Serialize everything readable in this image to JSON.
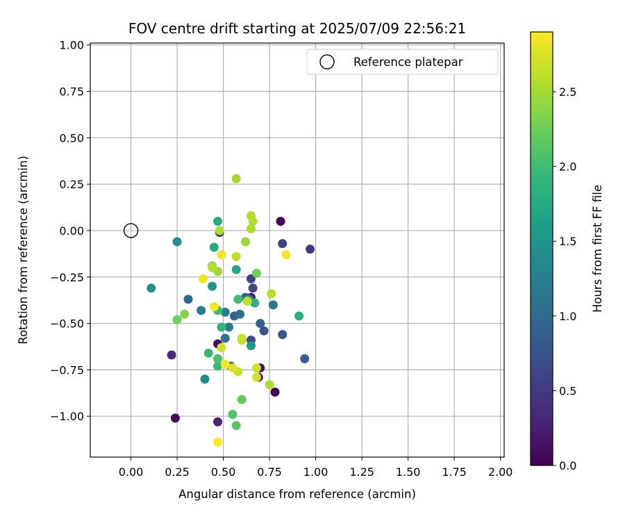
{
  "chart_data": {
    "type": "scatter",
    "title": "FOV centre drift starting at 2025/07/09 22:56:21",
    "xlabel": "Angular distance from reference (arcmin)",
    "ylabel": "Rotation from reference (arcmin)",
    "xlim": [
      -0.22,
      2.02
    ],
    "ylim": [
      -1.22,
      1.01
    ],
    "xticks": [
      "0.00",
      "0.25",
      "0.50",
      "0.75",
      "1.00",
      "1.25",
      "1.50",
      "1.75",
      "2.00"
    ],
    "xtick_values": [
      0,
      0.25,
      0.5,
      0.75,
      1.0,
      1.25,
      1.5,
      1.75,
      2.0
    ],
    "yticks": [
      "1.00",
      "0.75",
      "0.50",
      "0.25",
      "0.00",
      "−0.25",
      "−0.50",
      "−0.75",
      "−1.00"
    ],
    "ytick_values": [
      1.0,
      0.75,
      0.5,
      0.25,
      0,
      -0.25,
      -0.5,
      -0.75,
      -1.0
    ],
    "grid": true,
    "legend": {
      "position": "top-right",
      "label": "Reference platepar"
    },
    "reference_point": {
      "x": 0,
      "y": 0
    },
    "colorbar": {
      "label": "Hours from first FF file",
      "range": [
        0,
        2.9
      ],
      "ticks": [
        "0.0",
        "0.5",
        "1.0",
        "1.5",
        "2.0",
        "2.5"
      ],
      "tick_values": [
        0,
        0.5,
        1.0,
        1.5,
        2.0,
        2.5
      ],
      "colormap": [
        "#440154",
        "#482878",
        "#3e4989",
        "#31688e",
        "#26828e",
        "#1f9e89",
        "#35b779",
        "#6ece58",
        "#b5de2b",
        "#fde725"
      ]
    },
    "points": [
      {
        "x": 0.81,
        "y": 0.05,
        "c": 0.0
      },
      {
        "x": 0.78,
        "y": -0.87,
        "c": 0.0
      },
      {
        "x": 0.24,
        "y": -1.01,
        "c": 0.05
      },
      {
        "x": 0.47,
        "y": -0.61,
        "c": 0.1
      },
      {
        "x": 0.7,
        "y": -0.74,
        "c": 0.15
      },
      {
        "x": 0.69,
        "y": -0.79,
        "c": 0.1
      },
      {
        "x": 0.65,
        "y": -0.36,
        "c": 0.2
      },
      {
        "x": 0.47,
        "y": -1.03,
        "c": 0.3
      },
      {
        "x": 0.22,
        "y": -0.67,
        "c": 0.35
      },
      {
        "x": 0.97,
        "y": -0.1,
        "c": 0.5
      },
      {
        "x": 0.82,
        "y": -0.07,
        "c": 0.55
      },
      {
        "x": 0.48,
        "y": -0.01,
        "c": 0.55
      },
      {
        "x": 0.65,
        "y": -0.26,
        "c": 0.6
      },
      {
        "x": 0.66,
        "y": -0.31,
        "c": 0.6
      },
      {
        "x": 0.65,
        "y": -0.59,
        "c": 0.65
      },
      {
        "x": 0.72,
        "y": -0.54,
        "c": 0.75
      },
      {
        "x": 0.82,
        "y": -0.56,
        "c": 0.8
      },
      {
        "x": 0.94,
        "y": -0.69,
        "c": 0.85
      },
      {
        "x": 0.7,
        "y": -0.5,
        "c": 0.9
      },
      {
        "x": 0.56,
        "y": -0.46,
        "c": 0.9
      },
      {
        "x": 0.62,
        "y": -0.36,
        "c": 0.95
      },
      {
        "x": 0.31,
        "y": -0.37,
        "c": 1.0
      },
      {
        "x": 0.59,
        "y": -0.45,
        "c": 1.05
      },
      {
        "x": 0.51,
        "y": -0.58,
        "c": 1.1
      },
      {
        "x": 0.77,
        "y": -0.4,
        "c": 1.15
      },
      {
        "x": 0.54,
        "y": -0.73,
        "c": 1.15
      },
      {
        "x": 0.53,
        "y": -0.52,
        "c": 1.2
      },
      {
        "x": 0.38,
        "y": -0.43,
        "c": 1.25
      },
      {
        "x": 0.51,
        "y": -0.44,
        "c": 1.25
      },
      {
        "x": 0.64,
        "y": -0.37,
        "c": 1.3
      },
      {
        "x": 0.25,
        "y": -0.06,
        "c": 1.4
      },
      {
        "x": 0.4,
        "y": -0.8,
        "c": 1.4
      },
      {
        "x": 0.11,
        "y": -0.31,
        "c": 1.45
      },
      {
        "x": 0.44,
        "y": -0.3,
        "c": 1.5
      },
      {
        "x": 0.65,
        "y": -0.62,
        "c": 1.6
      },
      {
        "x": 0.57,
        "y": -0.21,
        "c": 1.7
      },
      {
        "x": 0.45,
        "y": -0.09,
        "c": 1.75
      },
      {
        "x": 0.47,
        "y": 0.05,
        "c": 1.75
      },
      {
        "x": 0.91,
        "y": -0.46,
        "c": 1.8
      },
      {
        "x": 0.67,
        "y": -0.39,
        "c": 1.85
      },
      {
        "x": 0.49,
        "y": -0.52,
        "c": 1.9
      },
      {
        "x": 0.42,
        "y": -0.66,
        "c": 1.95
      },
      {
        "x": 0.47,
        "y": -0.73,
        "c": 1.95
      },
      {
        "x": 0.47,
        "y": -0.43,
        "c": 2.0
      },
      {
        "x": 0.58,
        "y": -0.37,
        "c": 2.0
      },
      {
        "x": 0.47,
        "y": -0.69,
        "c": 2.05
      },
      {
        "x": 0.55,
        "y": -0.99,
        "c": 2.1
      },
      {
        "x": 0.57,
        "y": -1.05,
        "c": 2.15
      },
      {
        "x": 0.6,
        "y": -0.91,
        "c": 2.2
      },
      {
        "x": 0.25,
        "y": -0.48,
        "c": 2.25
      },
      {
        "x": 0.68,
        "y": -0.23,
        "c": 2.25
      },
      {
        "x": 0.29,
        "y": -0.45,
        "c": 2.35
      },
      {
        "x": 0.44,
        "y": -0.19,
        "c": 2.4
      },
      {
        "x": 0.47,
        "y": -0.22,
        "c": 2.45
      },
      {
        "x": 0.62,
        "y": -0.06,
        "c": 2.45
      },
      {
        "x": 0.57,
        "y": 0.28,
        "c": 2.5
      },
      {
        "x": 0.65,
        "y": 0.08,
        "c": 2.55
      },
      {
        "x": 0.66,
        "y": 0.05,
        "c": 2.55
      },
      {
        "x": 0.65,
        "y": 0.01,
        "c": 2.55
      },
      {
        "x": 0.48,
        "y": 0.0,
        "c": 2.55
      },
      {
        "x": 0.57,
        "y": -0.14,
        "c": 2.6
      },
      {
        "x": 0.44,
        "y": -0.2,
        "c": 2.6
      },
      {
        "x": 0.76,
        "y": -0.34,
        "c": 2.6
      },
      {
        "x": 0.63,
        "y": -0.38,
        "c": 2.6
      },
      {
        "x": 0.6,
        "y": -0.58,
        "c": 2.65
      },
      {
        "x": 0.6,
        "y": -0.59,
        "c": 2.65
      },
      {
        "x": 0.75,
        "y": -0.83,
        "c": 2.55
      },
      {
        "x": 0.58,
        "y": -0.76,
        "c": 2.65
      },
      {
        "x": 0.68,
        "y": -0.74,
        "c": 2.7
      },
      {
        "x": 0.68,
        "y": -0.79,
        "c": 2.7
      },
      {
        "x": 0.49,
        "y": -0.63,
        "c": 2.7
      },
      {
        "x": 0.55,
        "y": -0.74,
        "c": 2.75
      },
      {
        "x": 0.49,
        "y": -0.13,
        "c": 2.85
      },
      {
        "x": 0.84,
        "y": -0.13,
        "c": 2.85
      },
      {
        "x": 0.39,
        "y": -0.26,
        "c": 2.85
      },
      {
        "x": 0.45,
        "y": -0.41,
        "c": 2.85
      },
      {
        "x": 0.51,
        "y": -0.72,
        "c": 2.85
      },
      {
        "x": 0.47,
        "y": -1.14,
        "c": 2.9
      }
    ]
  }
}
